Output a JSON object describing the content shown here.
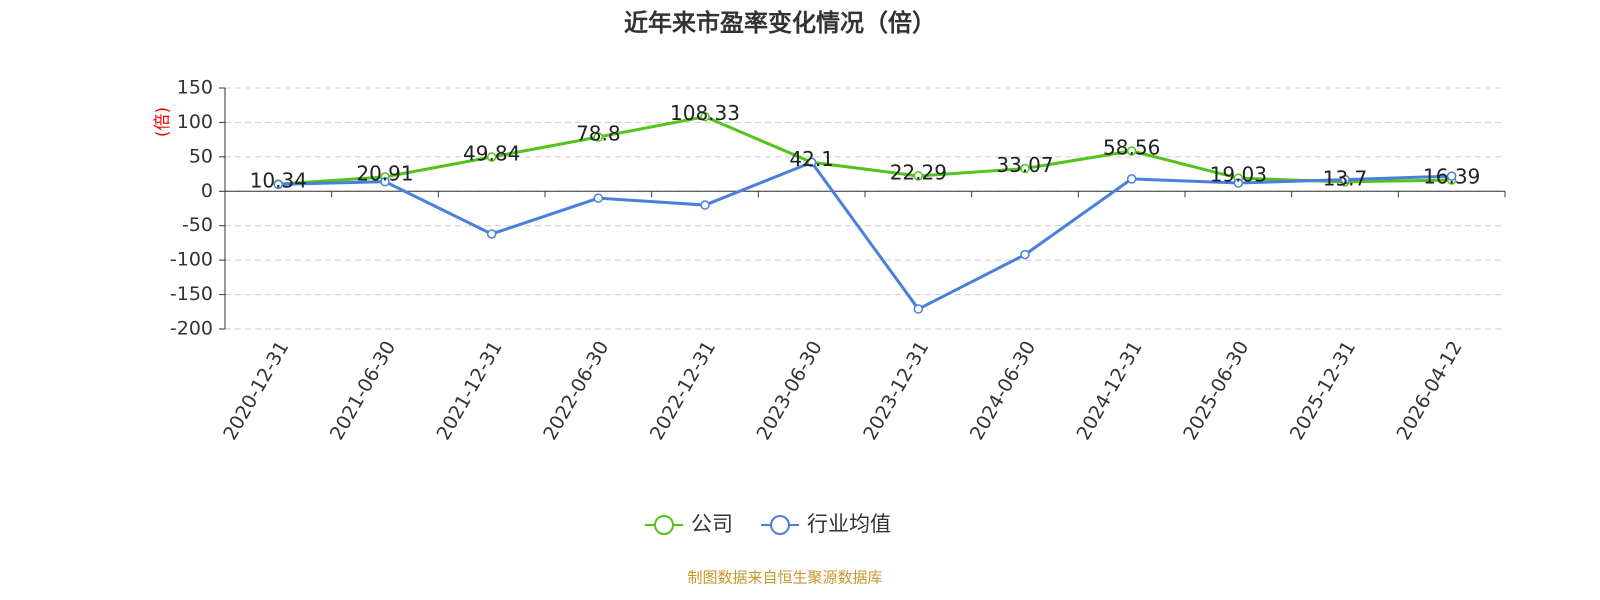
{
  "chart_data": {
    "type": "line",
    "title": "近年来市盈率变化情况（倍）",
    "y_label": "(倍)",
    "source": "制图数据来自恒生聚源数据库",
    "categories": [
      "2020-12-31",
      "2021-06-30",
      "2021-12-31",
      "2022-06-30",
      "2022-12-31",
      "2023-06-30",
      "2023-12-31",
      "2024-06-30",
      "2024-12-31",
      "2025-06-30",
      "2025-12-31",
      "2026-04-12"
    ],
    "series": [
      {
        "name": "公司",
        "color": "#52c41a",
        "values": [
          10.34,
          20.91,
          49.84,
          78.8,
          108.33,
          42.1,
          22.29,
          33.07,
          58.56,
          19.03,
          13.7,
          16.39
        ],
        "show_labels": true
      },
      {
        "name": "行业均值",
        "color": "#4a7fdc",
        "values": [
          10,
          14,
          -62,
          -10,
          -20,
          42,
          -171,
          -92,
          18,
          12,
          17,
          22
        ],
        "show_labels": false
      }
    ],
    "ylim": [
      -200,
      150
    ],
    "yticks": [
      -200,
      -150,
      -100,
      -50,
      0,
      50,
      100,
      150
    ],
    "grid": true
  }
}
